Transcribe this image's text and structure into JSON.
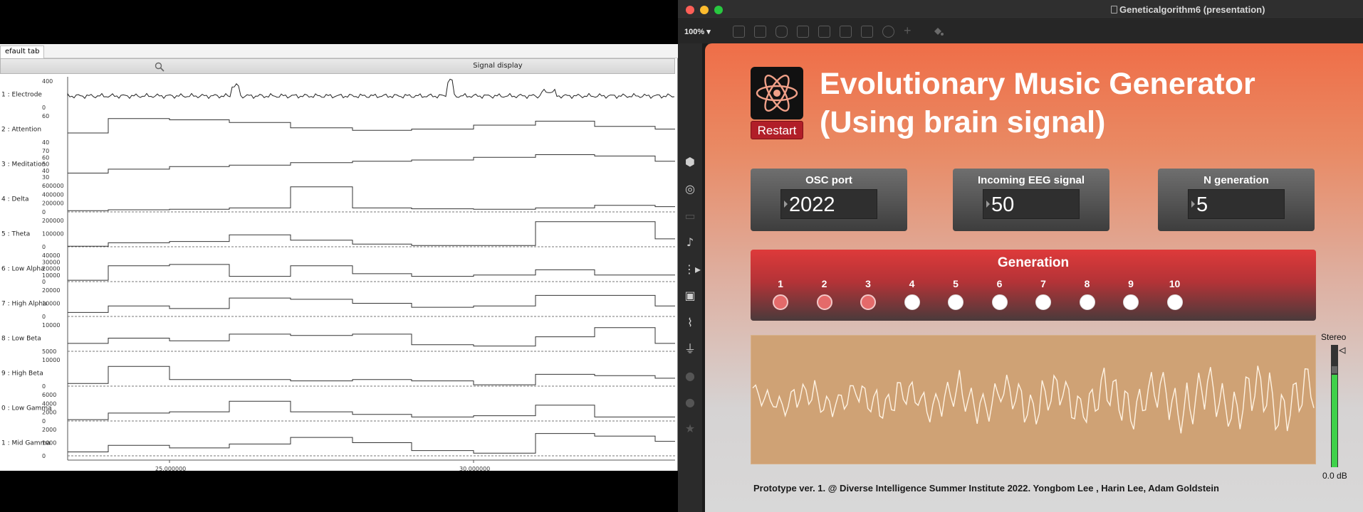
{
  "signal_window": {
    "tab_label": "efault tab",
    "header_title": "Signal display",
    "x_ticks": [
      "25.000000",
      "30.000000"
    ],
    "channels": [
      {
        "label": "1 : Electrode",
        "ticks": [
          "400",
          "0"
        ]
      },
      {
        "label": "2 : Attention",
        "ticks": [
          "60",
          "40"
        ]
      },
      {
        "label": "3 : Meditation",
        "ticks": [
          "70",
          "60",
          "50",
          "40",
          "30"
        ]
      },
      {
        "label": "4 : Delta",
        "ticks": [
          "600000",
          "400000",
          "200000",
          "0"
        ]
      },
      {
        "label": "5 : Theta",
        "ticks": [
          "200000",
          "100000",
          "0"
        ]
      },
      {
        "label": "6 : Low Alpha",
        "ticks": [
          "40000",
          "30000",
          "20000",
          "10000",
          "0"
        ]
      },
      {
        "label": "7 : High Alpha",
        "ticks": [
          "20000",
          "10000",
          "0"
        ]
      },
      {
        "label": "8 : Low Beta",
        "ticks": [
          "10000",
          "5000"
        ]
      },
      {
        "label": "9 : High Beta",
        "ticks": [
          "10000",
          "0"
        ]
      },
      {
        "label": "0 : Low Gamma",
        "ticks": [
          "6000",
          "4000",
          "2000",
          "0"
        ]
      },
      {
        "label": "1 : Mid Gamma",
        "ticks": [
          "2000",
          "1000",
          "0"
        ]
      }
    ]
  },
  "max_window": {
    "window_title": "Geneticalgorithm6 (presentation)",
    "zoom_level": "100%",
    "sidebar_icons": [
      "cube-icon",
      "target-icon",
      "film-icon",
      "music-note-icon",
      "play-list-icon",
      "image-icon",
      "paperclip-icon",
      "plug-icon",
      "circle-icon",
      "link-icon",
      "star-icon"
    ]
  },
  "app": {
    "title_line1": "Evolutionary Music Generator",
    "title_line2": "(Using brain signal)",
    "restart_label": "Restart",
    "osc_port": {
      "label": "OSC port",
      "value": "2022"
    },
    "incoming_eeg": {
      "label": "Incoming EEG signal",
      "value": "50"
    },
    "n_generation": {
      "label": "N generation",
      "value": "5"
    },
    "generation": {
      "title": "Generation",
      "steps": [
        {
          "label": "1",
          "active": true
        },
        {
          "label": "2",
          "active": true
        },
        {
          "label": "3",
          "active": true
        },
        {
          "label": "4",
          "active": false
        },
        {
          "label": "5",
          "active": false
        },
        {
          "label": "6",
          "active": false
        },
        {
          "label": "7",
          "active": false
        },
        {
          "label": "8",
          "active": false
        },
        {
          "label": "9",
          "active": false
        },
        {
          "label": "10",
          "active": false
        }
      ]
    },
    "stereo_label": "Stereo",
    "meter_db": "0.0 dB",
    "credits": "Prototype ver. 1. @ Diverse Intelligence Summer Institute 2022. Yongbom Lee , Harin Lee, Adam Goldstein"
  },
  "colors": {
    "panel_top": "#ef6e48",
    "restart_red": "#b11e28",
    "generation_red": "#de3a3a",
    "led_active": "#e46a6a",
    "wave_bg": "#cfa275",
    "meter_green": "#3fd14a"
  }
}
